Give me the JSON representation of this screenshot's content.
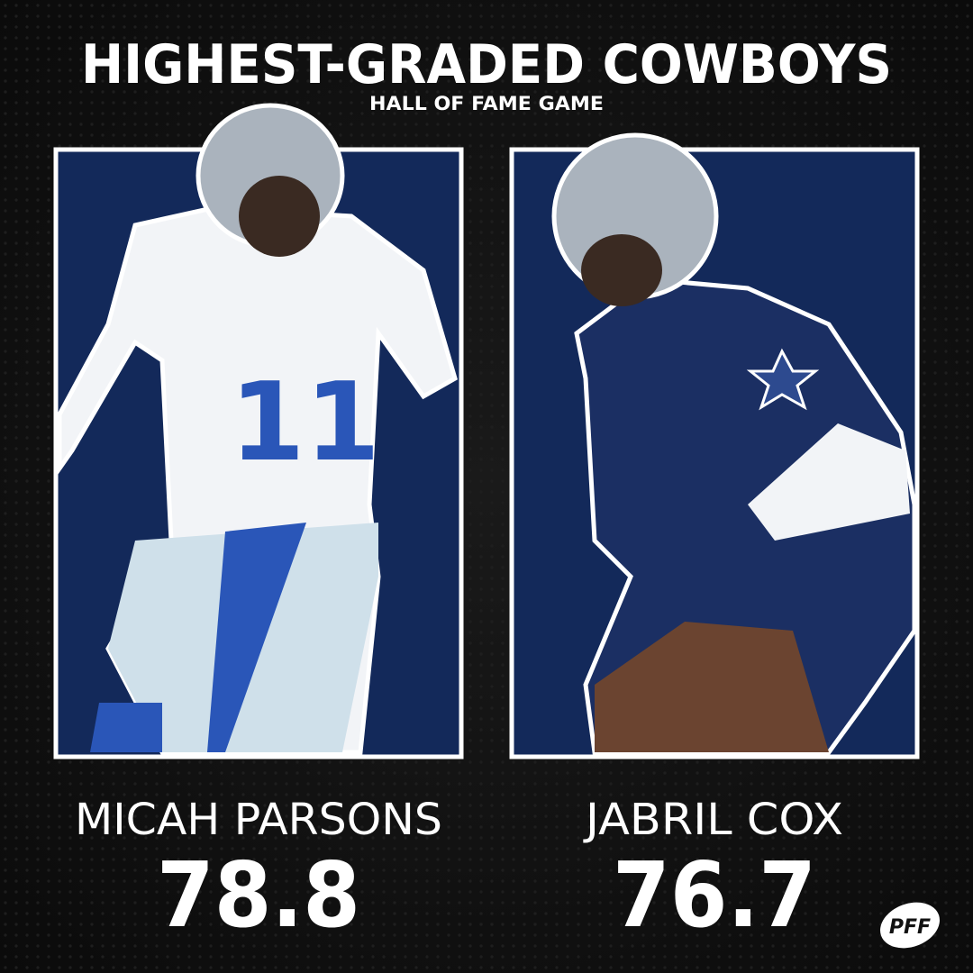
{
  "header": {
    "title": "HIGHEST-GRADED COWBOYS",
    "subtitle": "HALL OF FAME GAME"
  },
  "players": [
    {
      "name": "MICAH PARSONS",
      "grade": 78.8
    },
    {
      "name": "JABRIL COX",
      "grade": 76.7
    }
  ],
  "logo": "PFF"
}
